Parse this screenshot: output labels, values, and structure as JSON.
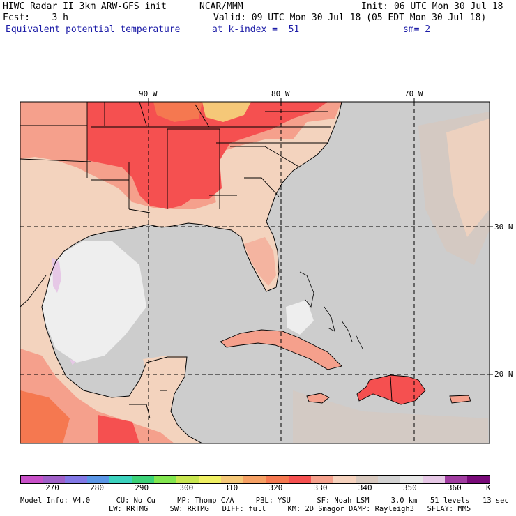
{
  "header": {
    "line1_left": "HIWC Radar II 3km ARW-GFS init",
    "line1_mid": "NCAR/MMM",
    "line1_right": "Init: 06 UTC Mon 30 Jul 18",
    "line2_left": "Fcst:    3 h",
    "line2_right": "Valid: 09 UTC Mon 30 Jul 18 (05 EDT Mon 30 Jul 18)",
    "line3_left": "Equivalent potential temperature",
    "line3_mid": "at k-index =  51",
    "line3_right": "sm= 2"
  },
  "map": {
    "lon_labels": [
      "90 W",
      "80 W",
      "70 W"
    ],
    "lat_labels": [
      "30 N",
      "20 N"
    ],
    "land_color": "#f3d3be",
    "ocean_color": "#cdcdcd"
  },
  "colorbar": {
    "colors": [
      "#c850c8",
      "#a060c8",
      "#8278e6",
      "#5a96e6",
      "#3cd2be",
      "#3cd278",
      "#82e650",
      "#c8e650",
      "#f0f064",
      "#f5c878",
      "#f5a064",
      "#f57850",
      "#f55050",
      "#f5a08c",
      "#f5d2be",
      "#d7c8be",
      "#d2d2d2",
      "#e6e6e6",
      "#e6c8e6",
      "#a03ca0",
      "#780a78"
    ],
    "labels": [
      "270",
      "280",
      "290",
      "300",
      "310",
      "320",
      "330",
      "340",
      "350",
      "360"
    ],
    "unit": "K"
  },
  "footer": {
    "line1": "Model Info: V4.0      CU: No Cu     MP: Thomp C/A     PBL: YSU      SF: Noah LSM     3.0 km   51 levels   13 sec",
    "line2": "LW: RRTMG     SW: RRTMG   DIFF: full     KM: 2D Smagor DAMP: Rayleigh3   SFLAY: MM5"
  }
}
